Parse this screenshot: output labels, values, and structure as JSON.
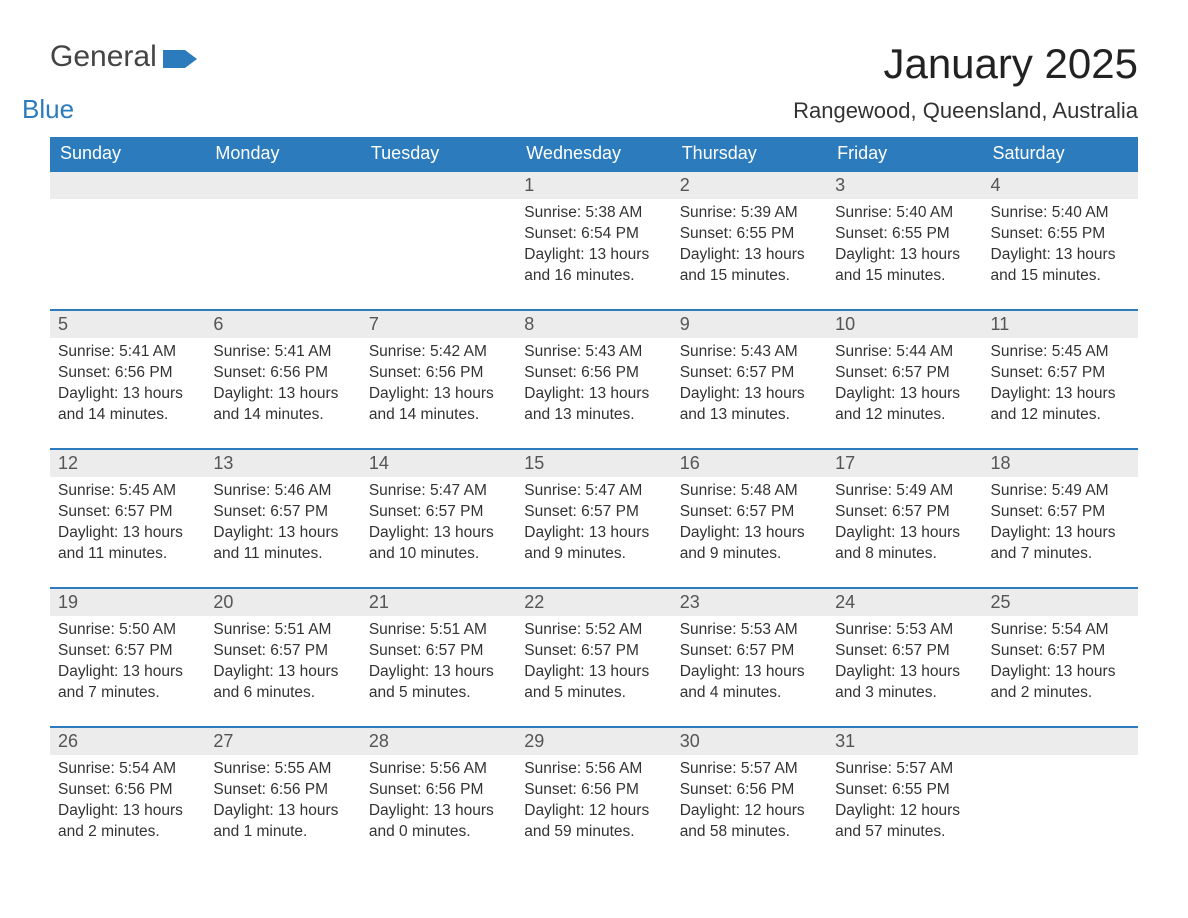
{
  "brand": {
    "word1": "General",
    "word2": "Blue",
    "flag_color": "#2b7bbd"
  },
  "title": "January 2025",
  "location": "Rangewood, Queensland, Australia",
  "colors": {
    "header_bg": "#2b7bbd",
    "header_text": "#ffffff",
    "daynum_bg": "#ececec",
    "row_border": "#2b7bbd",
    "body_text": "#333333",
    "page_bg": "#ffffff"
  },
  "fonts": {
    "title_size_pt": 32,
    "location_size_pt": 17,
    "header_size_pt": 14,
    "daynum_size_pt": 14,
    "body_size_pt": 12
  },
  "day_headers": [
    "Sunday",
    "Monday",
    "Tuesday",
    "Wednesday",
    "Thursday",
    "Friday",
    "Saturday"
  ],
  "weeks": [
    [
      null,
      null,
      null,
      {
        "n": "1",
        "sunrise": "5:38 AM",
        "sunset": "6:54 PM",
        "daylight": "13 hours and 16 minutes."
      },
      {
        "n": "2",
        "sunrise": "5:39 AM",
        "sunset": "6:55 PM",
        "daylight": "13 hours and 15 minutes."
      },
      {
        "n": "3",
        "sunrise": "5:40 AM",
        "sunset": "6:55 PM",
        "daylight": "13 hours and 15 minutes."
      },
      {
        "n": "4",
        "sunrise": "5:40 AM",
        "sunset": "6:55 PM",
        "daylight": "13 hours and 15 minutes."
      }
    ],
    [
      {
        "n": "5",
        "sunrise": "5:41 AM",
        "sunset": "6:56 PM",
        "daylight": "13 hours and 14 minutes."
      },
      {
        "n": "6",
        "sunrise": "5:41 AM",
        "sunset": "6:56 PM",
        "daylight": "13 hours and 14 minutes."
      },
      {
        "n": "7",
        "sunrise": "5:42 AM",
        "sunset": "6:56 PM",
        "daylight": "13 hours and 14 minutes."
      },
      {
        "n": "8",
        "sunrise": "5:43 AM",
        "sunset": "6:56 PM",
        "daylight": "13 hours and 13 minutes."
      },
      {
        "n": "9",
        "sunrise": "5:43 AM",
        "sunset": "6:57 PM",
        "daylight": "13 hours and 13 minutes."
      },
      {
        "n": "10",
        "sunrise": "5:44 AM",
        "sunset": "6:57 PM",
        "daylight": "13 hours and 12 minutes."
      },
      {
        "n": "11",
        "sunrise": "5:45 AM",
        "sunset": "6:57 PM",
        "daylight": "13 hours and 12 minutes."
      }
    ],
    [
      {
        "n": "12",
        "sunrise": "5:45 AM",
        "sunset": "6:57 PM",
        "daylight": "13 hours and 11 minutes."
      },
      {
        "n": "13",
        "sunrise": "5:46 AM",
        "sunset": "6:57 PM",
        "daylight": "13 hours and 11 minutes."
      },
      {
        "n": "14",
        "sunrise": "5:47 AM",
        "sunset": "6:57 PM",
        "daylight": "13 hours and 10 minutes."
      },
      {
        "n": "15",
        "sunrise": "5:47 AM",
        "sunset": "6:57 PM",
        "daylight": "13 hours and 9 minutes."
      },
      {
        "n": "16",
        "sunrise": "5:48 AM",
        "sunset": "6:57 PM",
        "daylight": "13 hours and 9 minutes."
      },
      {
        "n": "17",
        "sunrise": "5:49 AM",
        "sunset": "6:57 PM",
        "daylight": "13 hours and 8 minutes."
      },
      {
        "n": "18",
        "sunrise": "5:49 AM",
        "sunset": "6:57 PM",
        "daylight": "13 hours and 7 minutes."
      }
    ],
    [
      {
        "n": "19",
        "sunrise": "5:50 AM",
        "sunset": "6:57 PM",
        "daylight": "13 hours and 7 minutes."
      },
      {
        "n": "20",
        "sunrise": "5:51 AM",
        "sunset": "6:57 PM",
        "daylight": "13 hours and 6 minutes."
      },
      {
        "n": "21",
        "sunrise": "5:51 AM",
        "sunset": "6:57 PM",
        "daylight": "13 hours and 5 minutes."
      },
      {
        "n": "22",
        "sunrise": "5:52 AM",
        "sunset": "6:57 PM",
        "daylight": "13 hours and 5 minutes."
      },
      {
        "n": "23",
        "sunrise": "5:53 AM",
        "sunset": "6:57 PM",
        "daylight": "13 hours and 4 minutes."
      },
      {
        "n": "24",
        "sunrise": "5:53 AM",
        "sunset": "6:57 PM",
        "daylight": "13 hours and 3 minutes."
      },
      {
        "n": "25",
        "sunrise": "5:54 AM",
        "sunset": "6:57 PM",
        "daylight": "13 hours and 2 minutes."
      }
    ],
    [
      {
        "n": "26",
        "sunrise": "5:54 AM",
        "sunset": "6:56 PM",
        "daylight": "13 hours and 2 minutes."
      },
      {
        "n": "27",
        "sunrise": "5:55 AM",
        "sunset": "6:56 PM",
        "daylight": "13 hours and 1 minute."
      },
      {
        "n": "28",
        "sunrise": "5:56 AM",
        "sunset": "6:56 PM",
        "daylight": "13 hours and 0 minutes."
      },
      {
        "n": "29",
        "sunrise": "5:56 AM",
        "sunset": "6:56 PM",
        "daylight": "12 hours and 59 minutes."
      },
      {
        "n": "30",
        "sunrise": "5:57 AM",
        "sunset": "6:56 PM",
        "daylight": "12 hours and 58 minutes."
      },
      {
        "n": "31",
        "sunrise": "5:57 AM",
        "sunset": "6:55 PM",
        "daylight": "12 hours and 57 minutes."
      },
      null
    ]
  ],
  "labels": {
    "sunrise": "Sunrise: ",
    "sunset": "Sunset: ",
    "daylight": "Daylight: "
  }
}
